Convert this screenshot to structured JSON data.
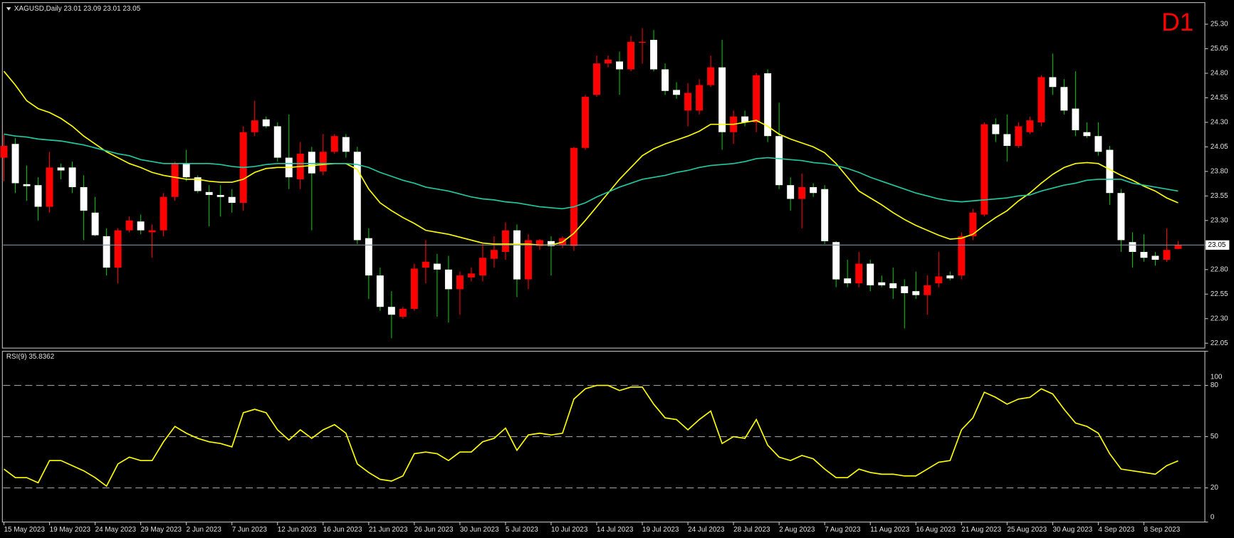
{
  "chart_data": [
    {
      "type": "candlestick",
      "title": "XAGUSD,Daily  23.01 23.09 23.01 23.05",
      "badge": "D1",
      "categories": [
        "15 May 2023",
        null,
        null,
        null,
        "19 May 2023",
        null,
        null,
        null,
        "24 May 2023",
        null,
        null,
        null,
        "29 May 2023",
        null,
        null,
        null,
        "2 Jun 2023",
        null,
        null,
        null,
        "7 Jun 2023",
        null,
        null,
        null,
        "12 Jun 2023",
        null,
        null,
        null,
        "16 Jun 2023",
        null,
        null,
        null,
        "21 Jun 2023",
        null,
        null,
        null,
        "26 Jun 2023",
        null,
        null,
        null,
        "30 Jun 2023",
        null,
        null,
        null,
        "5 Jul 2023",
        null,
        null,
        null,
        "10 Jul 2023",
        null,
        null,
        null,
        "14 Jul 2023",
        null,
        null,
        null,
        "19 Jul 2023",
        null,
        null,
        null,
        "24 Jul 2023",
        null,
        null,
        null,
        "28 Jul 2023",
        null,
        null,
        null,
        "2 Aug 2023",
        null,
        null,
        null,
        "7 Aug 2023",
        null,
        null,
        null,
        "11 Aug 2023",
        null,
        null,
        null,
        "16 Aug 2023",
        null,
        null,
        null,
        "21 Aug 2023",
        null,
        null,
        null,
        "25 Aug 2023",
        null,
        null,
        null,
        "30 Aug 2023",
        null,
        null,
        null,
        "4 Sep 2023",
        null,
        null,
        null,
        "8 Sep 2023",
        null,
        null,
        null
      ],
      "open": [
        23.94,
        24.08,
        23.67,
        23.66,
        23.44,
        23.84,
        23.84,
        23.64,
        23.38,
        23.14,
        22.82,
        23.2,
        23.29,
        23.18,
        23.2,
        23.54,
        23.88,
        23.74,
        23.59,
        23.56,
        23.54,
        23.48,
        24.2,
        24.33,
        24.26,
        23.94,
        23.72,
        24.0,
        23.8,
        24.0,
        24.15,
        24.0,
        23.12,
        22.74,
        22.42,
        22.32,
        22.4,
        22.82,
        22.86,
        22.8,
        22.6,
        22.72,
        22.74,
        22.91,
        22.98,
        23.2,
        22.7,
        23.04,
        23.09,
        23.05,
        23.04,
        24.04,
        24.58,
        24.9,
        24.92,
        24.84,
        25.11,
        25.14,
        24.84,
        24.63,
        24.42,
        24.42,
        24.68,
        24.86,
        24.2,
        24.36,
        24.3,
        24.8,
        24.16,
        23.66,
        23.52,
        23.64,
        23.62,
        23.08,
        22.71,
        22.66,
        22.86,
        22.67,
        22.66,
        22.63,
        22.58,
        22.54,
        22.66,
        22.74,
        22.74,
        23.14,
        23.36,
        24.28,
        24.18,
        24.06,
        24.2,
        24.3,
        24.76,
        24.66,
        24.44,
        24.2,
        24.16,
        24.02,
        23.58,
        23.08,
        22.98,
        22.94,
        22.9,
        23.01
      ],
      "high": [
        24.18,
        24.14,
        23.86,
        23.74,
        24.0,
        23.88,
        23.9,
        23.76,
        23.54,
        23.22,
        23.22,
        23.34,
        23.36,
        23.26,
        23.58,
        23.9,
        24.02,
        23.76,
        23.66,
        23.66,
        23.62,
        24.26,
        24.52,
        24.36,
        24.3,
        24.38,
        24.1,
        24.05,
        24.18,
        24.18,
        24.18,
        24.05,
        23.22,
        22.82,
        22.58,
        22.42,
        22.86,
        23.1,
        22.96,
        22.94,
        22.78,
        22.82,
        23.06,
        23.14,
        23.28,
        23.26,
        23.16,
        23.11,
        23.14,
        23.14,
        24.05,
        24.58,
        24.98,
        24.98,
        25.02,
        25.18,
        25.26,
        25.24,
        24.9,
        24.71,
        24.7,
        24.74,
        24.98,
        25.14,
        24.42,
        24.42,
        24.8,
        24.84,
        24.5,
        23.74,
        23.78,
        23.68,
        23.66,
        23.09,
        22.9,
        22.98,
        22.9,
        22.74,
        22.82,
        22.7,
        22.78,
        22.74,
        22.98,
        22.78,
        23.18,
        23.42,
        24.3,
        24.34,
        24.38,
        24.3,
        24.36,
        24.78,
        25.0,
        24.74,
        24.82,
        24.3,
        24.3,
        24.06,
        23.62,
        23.18,
        23.16,
        22.98,
        23.22,
        23.09
      ],
      "low": [
        23.7,
        23.58,
        23.5,
        23.3,
        23.38,
        23.72,
        23.58,
        23.1,
        23.14,
        22.74,
        22.66,
        23.18,
        23.16,
        22.92,
        23.14,
        23.5,
        23.7,
        23.58,
        23.24,
        23.34,
        23.38,
        23.4,
        24.16,
        24.24,
        23.9,
        23.62,
        23.62,
        23.2,
        23.76,
        23.98,
        23.94,
        23.06,
        22.5,
        22.38,
        22.1,
        22.3,
        22.38,
        22.66,
        22.32,
        22.26,
        22.34,
        22.68,
        22.68,
        22.82,
        22.9,
        22.52,
        22.6,
        23.0,
        22.74,
        23.02,
        22.99,
        24.02,
        24.56,
        24.86,
        24.58,
        24.82,
        24.9,
        24.82,
        24.58,
        24.54,
        24.26,
        24.38,
        24.66,
        24.02,
        24.08,
        24.26,
        24.2,
        24.1,
        23.62,
        23.4,
        23.22,
        23.54,
        23.06,
        22.62,
        22.62,
        22.62,
        22.58,
        22.62,
        22.5,
        22.2,
        22.5,
        22.34,
        22.62,
        22.69,
        22.7,
        23.1,
        23.34,
        24.1,
        23.9,
        24.04,
        24.18,
        24.26,
        24.58,
        24.38,
        24.16,
        24.14,
        23.96,
        23.46,
        22.98,
        22.82,
        22.88,
        22.84,
        22.88,
        23.01
      ],
      "close": [
        24.06,
        23.68,
        23.65,
        23.44,
        23.84,
        23.81,
        23.64,
        23.4,
        23.15,
        22.82,
        23.2,
        23.3,
        23.2,
        23.2,
        23.54,
        23.88,
        23.74,
        23.6,
        23.56,
        23.54,
        23.48,
        24.2,
        24.32,
        24.26,
        23.94,
        23.74,
        23.98,
        23.78,
        24.0,
        24.16,
        24.0,
        23.1,
        22.74,
        22.42,
        22.34,
        22.4,
        22.81,
        22.88,
        22.8,
        22.6,
        22.74,
        22.76,
        22.92,
        23.0,
        23.2,
        22.7,
        23.1,
        23.1,
        23.04,
        23.12,
        24.04,
        24.56,
        24.9,
        24.94,
        24.84,
        25.12,
        25.12,
        24.84,
        24.62,
        24.58,
        24.6,
        24.68,
        24.86,
        24.2,
        24.36,
        24.3,
        24.78,
        24.16,
        23.66,
        23.52,
        23.64,
        23.58,
        23.09,
        22.7,
        22.66,
        22.86,
        22.64,
        22.64,
        22.61,
        22.56,
        22.54,
        22.64,
        22.73,
        22.71,
        23.14,
        23.38,
        24.28,
        24.18,
        24.06,
        24.26,
        24.32,
        24.76,
        24.66,
        24.42,
        24.22,
        24.16,
        24.0,
        23.58,
        23.1,
        22.98,
        22.92,
        22.9,
        23.0,
        23.05
      ],
      "up_color": "#ff0000",
      "down_color": "#ffffff",
      "wick_up_color": "#ff0000",
      "wick_down_color": "#00c000",
      "series": [
        {
          "color": "#ffff00",
          "values": [
            24.82,
            24.68,
            24.52,
            24.44,
            24.4,
            24.34,
            24.26,
            24.16,
            24.08,
            24.0,
            23.94,
            23.88,
            23.84,
            23.79,
            23.76,
            23.74,
            23.72,
            23.72,
            23.7,
            23.69,
            23.69,
            23.72,
            23.79,
            23.83,
            23.84,
            23.84,
            23.85,
            23.86,
            23.87,
            23.88,
            23.88,
            23.82,
            23.62,
            23.48,
            23.4,
            23.33,
            23.27,
            23.2,
            23.18,
            23.16,
            23.13,
            23.1,
            23.07,
            23.06,
            23.06,
            23.06,
            23.06,
            23.05,
            23.05,
            23.08,
            23.17,
            23.3,
            23.44,
            23.58,
            23.72,
            23.84,
            23.96,
            24.03,
            24.08,
            24.12,
            24.16,
            24.21,
            24.28,
            24.28,
            24.28,
            24.3,
            24.32,
            24.26,
            24.18,
            24.13,
            24.09,
            24.05,
            23.99,
            23.88,
            23.74,
            23.6,
            23.53,
            23.46,
            23.38,
            23.31,
            23.25,
            23.2,
            23.15,
            23.11,
            23.12,
            23.16,
            23.25,
            23.33,
            23.4,
            23.5,
            23.58,
            23.68,
            23.77,
            23.84,
            23.88,
            23.89,
            23.88,
            23.82,
            23.76,
            23.71,
            23.65,
            23.6,
            23.53,
            23.48
          ]
        },
        {
          "color": "#20c9a0",
          "values": [
            24.18,
            24.16,
            24.15,
            24.13,
            24.12,
            24.11,
            24.09,
            24.07,
            24.04,
            24.01,
            23.98,
            23.96,
            23.92,
            23.9,
            23.88,
            23.88,
            23.88,
            23.88,
            23.88,
            23.87,
            23.85,
            23.84,
            23.85,
            23.87,
            23.88,
            23.88,
            23.88,
            23.88,
            23.88,
            23.88,
            23.88,
            23.87,
            23.84,
            23.79,
            23.75,
            23.71,
            23.68,
            23.64,
            23.62,
            23.6,
            23.57,
            23.54,
            23.52,
            23.51,
            23.49,
            23.48,
            23.46,
            23.44,
            23.43,
            23.42,
            23.44,
            23.48,
            23.54,
            23.59,
            23.64,
            23.68,
            23.72,
            23.74,
            23.76,
            23.79,
            23.81,
            23.84,
            23.86,
            23.87,
            23.88,
            23.9,
            23.93,
            23.94,
            23.93,
            23.92,
            23.91,
            23.89,
            23.88,
            23.86,
            23.83,
            23.79,
            23.74,
            23.7,
            23.66,
            23.62,
            23.58,
            23.55,
            23.52,
            23.5,
            23.49,
            23.5,
            23.51,
            23.52,
            23.53,
            23.55,
            23.56,
            23.6,
            23.63,
            23.66,
            23.68,
            23.71,
            23.72,
            23.72,
            23.72,
            23.68,
            23.66,
            23.64,
            23.62,
            23.6
          ]
        }
      ],
      "price_line": 23.05,
      "ylim": [
        22.0,
        25.52
      ],
      "yticks": [
        22.05,
        {
          "value": 22.3,
          "label": "22.30"
        },
        22.55,
        {
          "value": 22.8,
          "label": "22.80"
        },
        23.05,
        {
          "value": 23.3,
          "label": "23.30"
        },
        23.55,
        {
          "value": 23.8,
          "label": "23.80"
        },
        24.05,
        {
          "value": 24.3,
          "label": "24.30"
        },
        24.55,
        {
          "value": 24.8,
          "label": "24.80"
        },
        25.05,
        {
          "value": 25.3,
          "label": "25.30"
        }
      ]
    },
    {
      "type": "line",
      "title": "RSI(9) 35.8362",
      "series": [
        {
          "color": "#ffff00",
          "values": [
            31,
            26,
            26,
            23,
            36,
            36,
            33,
            30,
            26,
            21,
            34,
            38,
            36,
            36,
            47,
            56,
            52,
            49,
            47,
            46,
            44,
            64,
            66,
            64,
            54,
            48,
            54,
            49,
            54,
            57,
            52,
            34,
            29,
            25,
            24,
            27,
            40,
            41,
            40,
            36,
            41,
            41,
            47,
            49,
            55,
            42,
            51,
            52,
            51,
            52,
            72,
            78,
            80,
            80,
            77,
            79,
            79,
            69,
            61,
            60,
            54,
            60,
            65,
            46,
            50,
            49,
            60,
            45,
            38,
            36,
            39,
            37,
            31,
            26,
            26,
            31,
            29,
            28,
            28,
            27,
            27,
            31,
            35,
            36,
            54,
            61,
            76,
            73,
            69,
            72,
            73,
            78,
            75,
            66,
            58,
            56,
            52,
            40,
            31,
            30,
            29,
            28,
            33,
            35.8362
          ]
        }
      ],
      "ylim": [
        0,
        100
      ],
      "yticks": [
        0,
        20,
        50,
        80,
        100
      ],
      "levels": [
        20,
        50,
        80
      ]
    }
  ]
}
